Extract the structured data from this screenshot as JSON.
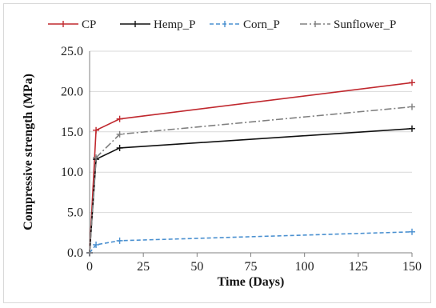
{
  "chart_data": {
    "type": "line",
    "xlabel": "Time (Days)",
    "ylabel": "Compressive strength (MPa)",
    "xlim": [
      0,
      150
    ],
    "ylim": [
      0,
      25
    ],
    "x_ticks": [
      0,
      25,
      50,
      75,
      100,
      125,
      150
    ],
    "y_ticks": [
      0.0,
      5.0,
      10.0,
      15.0,
      20.0,
      25.0
    ],
    "y_tick_labels": [
      "0.0",
      "5.0",
      "10.0",
      "15.0",
      "20.0",
      "25.0"
    ],
    "grid": "horizontal",
    "legend_position": "top",
    "series": [
      {
        "name": "CP",
        "color": "#c0282e",
        "dash": "solid",
        "x": [
          0,
          3,
          14,
          150
        ],
        "y": [
          0.0,
          15.2,
          16.6,
          21.1
        ]
      },
      {
        "name": "Hemp_P",
        "color": "#111111",
        "dash": "solid",
        "x": [
          0,
          3,
          14,
          150
        ],
        "y": [
          0.0,
          11.6,
          13.0,
          15.4
        ]
      },
      {
        "name": "Corn_P",
        "color": "#4a90d0",
        "dash": "dashed",
        "x": [
          0,
          3,
          14,
          150
        ],
        "y": [
          0.0,
          1.0,
          1.5,
          2.6
        ]
      },
      {
        "name": "Sunflower_P",
        "color": "#808080",
        "dash": "dashdot",
        "x": [
          0,
          3,
          14,
          150
        ],
        "y": [
          0.0,
          11.8,
          14.7,
          18.1
        ]
      }
    ]
  }
}
